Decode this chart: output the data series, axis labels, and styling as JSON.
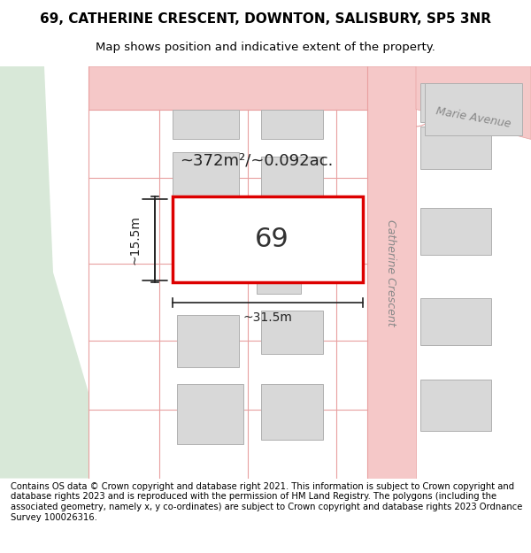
{
  "title": "69, CATHERINE CRESCENT, DOWNTON, SALISBURY, SP5 3NR",
  "subtitle": "Map shows position and indicative extent of the property.",
  "footer": "Contains OS data © Crown copyright and database right 2021. This information is subject to Crown copyright and database rights 2023 and is reproduced with the permission of HM Land Registry. The polygons (including the associated geometry, namely x, y co-ordinates) are subject to Crown copyright and database rights 2023 Ordnance Survey 100026316.",
  "bg_color": "#ffffff",
  "map_bg": "#f5f5f5",
  "road_color": "#f5c8c8",
  "road_edge_color": "#e8a0a0",
  "building_fill": "#d8d8d8",
  "building_edge": "#b0b0b0",
  "green_area": "#d8e8d8",
  "highlight_fill": "#ffffff",
  "highlight_edge": "#dd0000",
  "street_label_color": "#888888",
  "dim_color": "#222222",
  "area_label": "~372m²/~0.092ac.",
  "width_label": "~31.5m",
  "height_label": "~15.5m",
  "number_label": "69",
  "street_name_1": "Catherine Crescent",
  "street_name_2": "Marie Avenue"
}
